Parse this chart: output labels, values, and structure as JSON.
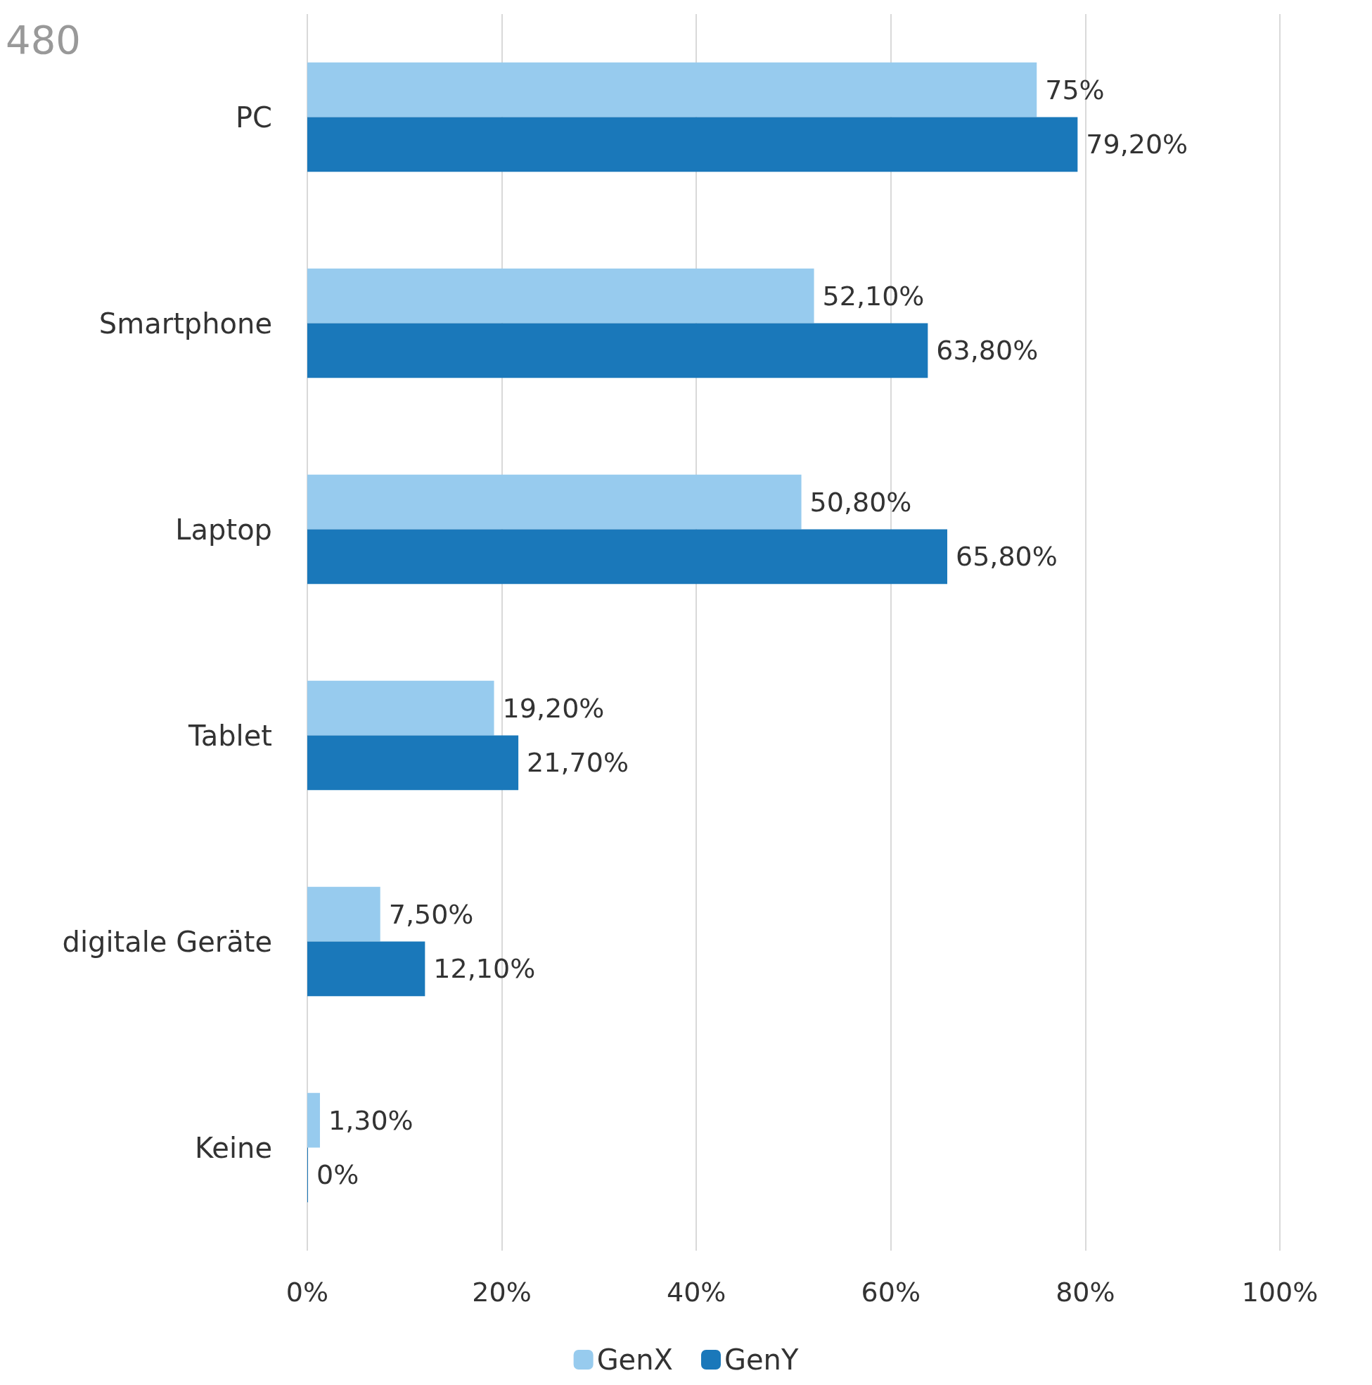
{
  "chart_data": {
    "type": "bar",
    "orientation": "horizontal",
    "annotations": [
      "480"
    ],
    "categories": [
      "PC",
      "Smartphone",
      "Laptop",
      "Tablet",
      "digitale Geräte",
      "Keine"
    ],
    "series": [
      {
        "name": "GenX",
        "color": "#97cbee",
        "values": [
          75,
          52.1,
          50.8,
          19.2,
          7.5,
          1.3
        ],
        "value_labels": [
          "75%",
          "52,10%",
          "50,80%",
          "19,20%",
          "7,50%",
          "1,30%"
        ]
      },
      {
        "name": "GenY",
        "color": "#1a78ba",
        "values": [
          79.2,
          63.8,
          65.8,
          21.7,
          12.1,
          0
        ],
        "value_labels": [
          "79,20%",
          "63,80%",
          "65,80%",
          "21,70%",
          "12,10%",
          "0%"
        ]
      }
    ],
    "xlim": [
      0,
      100
    ],
    "xticks": [
      {
        "value": 0,
        "label": "0%"
      },
      {
        "value": 20,
        "label": "20%"
      },
      {
        "value": 40,
        "label": "40%"
      },
      {
        "value": 60,
        "label": "60%"
      },
      {
        "value": 80,
        "label": "80%"
      },
      {
        "value": 100,
        "label": "100%"
      }
    ],
    "grid": "x",
    "legend": "bottom"
  }
}
